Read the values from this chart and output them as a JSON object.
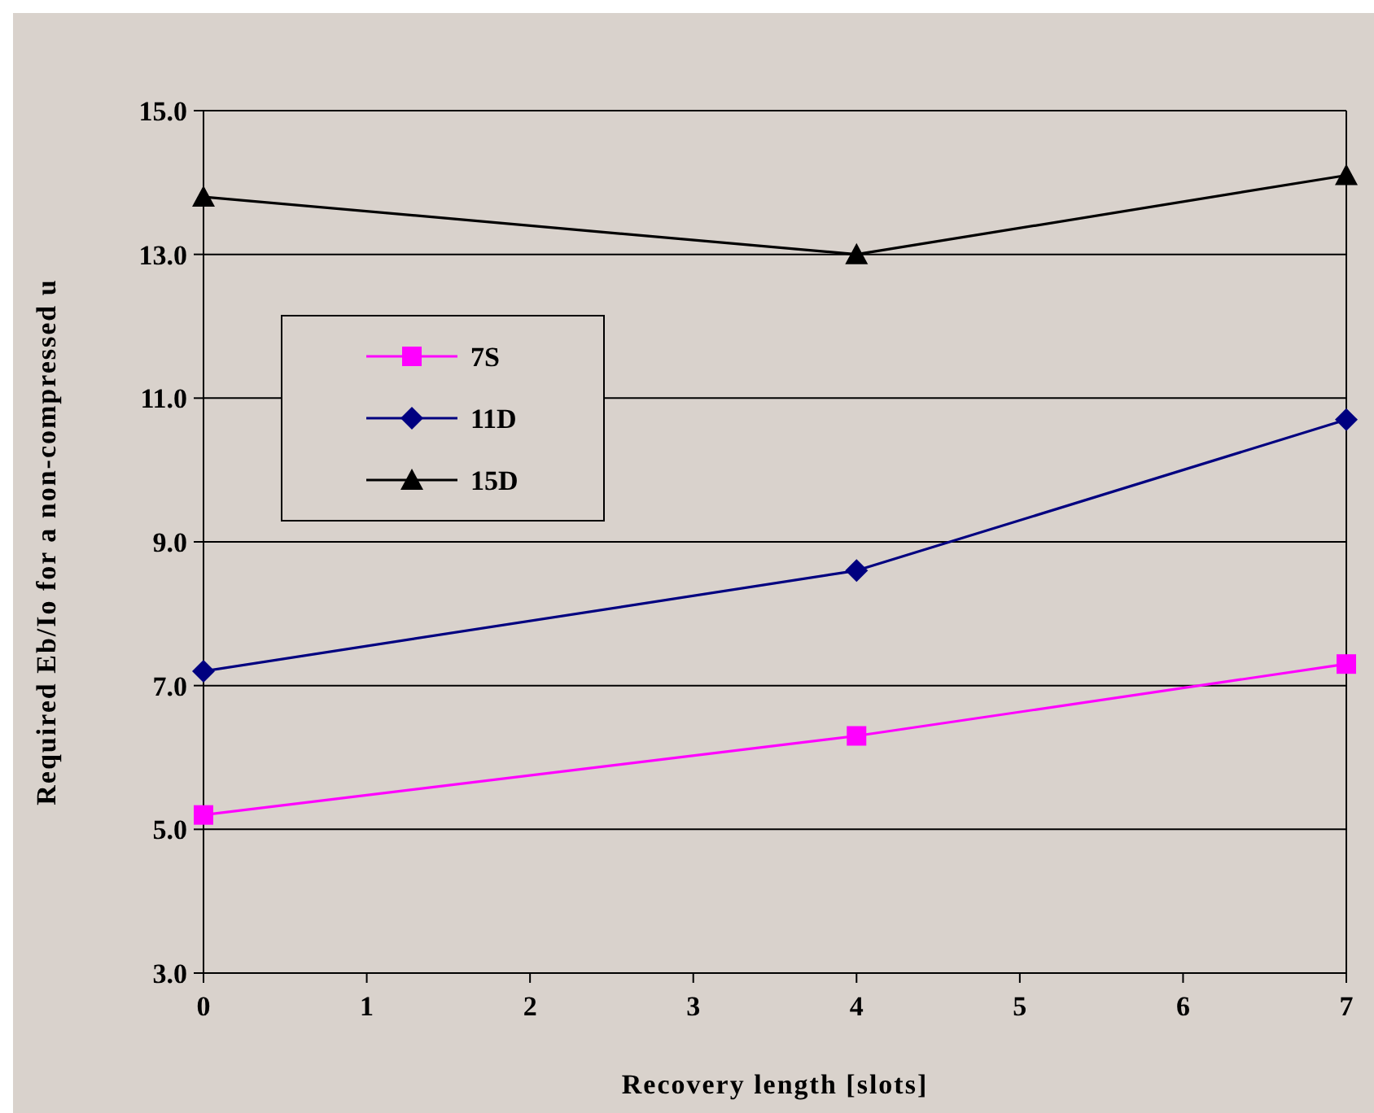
{
  "chart_data": {
    "type": "line",
    "xlabel": "Recovery length [slots]",
    "ylabel": "Required Eb/Io for a non-compressed u",
    "x": [
      0,
      4,
      7
    ],
    "xlim": [
      0,
      7
    ],
    "xticks": [
      0,
      1,
      2,
      3,
      4,
      5,
      6,
      7
    ],
    "ylim": [
      3,
      15
    ],
    "yticks": [
      {
        "value": 3,
        "label": "3.0"
      },
      {
        "value": 5,
        "label": "5.0"
      },
      {
        "value": 7,
        "label": "7.0"
      },
      {
        "value": 9,
        "label": "9.0"
      },
      {
        "value": 11,
        "label": "11.0"
      },
      {
        "value": 13,
        "label": "13.0"
      },
      {
        "value": 15,
        "label": "15.0"
      }
    ],
    "grid": "y",
    "legend": "top left",
    "series": [
      {
        "name": "7S",
        "color": "#ff00ff",
        "marker": "square",
        "values": [
          5.2,
          6.3,
          7.3
        ]
      },
      {
        "name": "11D",
        "color": "#000080",
        "marker": "diamond",
        "values": [
          7.2,
          8.6,
          10.7
        ]
      },
      {
        "name": "15D",
        "color": "#000000",
        "marker": "triangle",
        "values": [
          13.8,
          13.0,
          14.1
        ]
      }
    ]
  }
}
